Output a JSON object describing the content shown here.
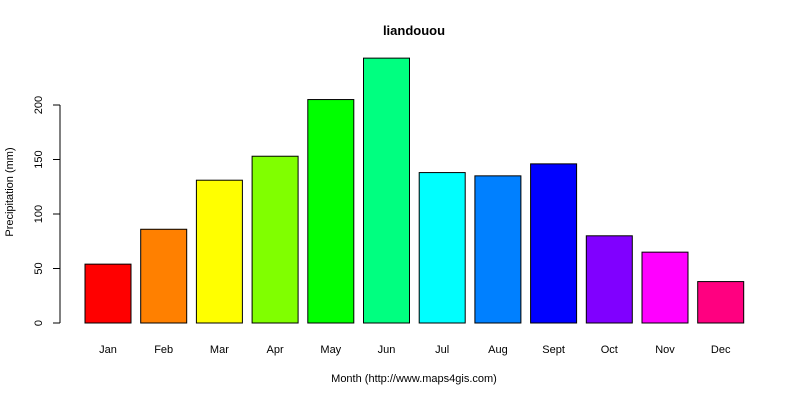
{
  "chart_data": {
    "type": "bar",
    "title": "liandouou",
    "xlabel": "Month (http://www.maps4gis.com)",
    "ylabel": "Precipitation (mm)",
    "categories": [
      "Jan",
      "Feb",
      "Mar",
      "Apr",
      "May",
      "Jun",
      "Jul",
      "Aug",
      "Sept",
      "Oct",
      "Nov",
      "Dec"
    ],
    "values": [
      54,
      86,
      131,
      153,
      205,
      243,
      138,
      135,
      146,
      80,
      65,
      38
    ],
    "colors": [
      "#FF0000",
      "#FF8000",
      "#FFFF00",
      "#80FF00",
      "#00FF00",
      "#00FF80",
      "#00FFFF",
      "#0080FF",
      "#0000FF",
      "#8000FF",
      "#FF00FF",
      "#FF0080"
    ],
    "yticks": [
      0,
      50,
      100,
      150,
      200
    ],
    "ylim": [
      0,
      243
    ],
    "grid": false,
    "legend": "none"
  }
}
